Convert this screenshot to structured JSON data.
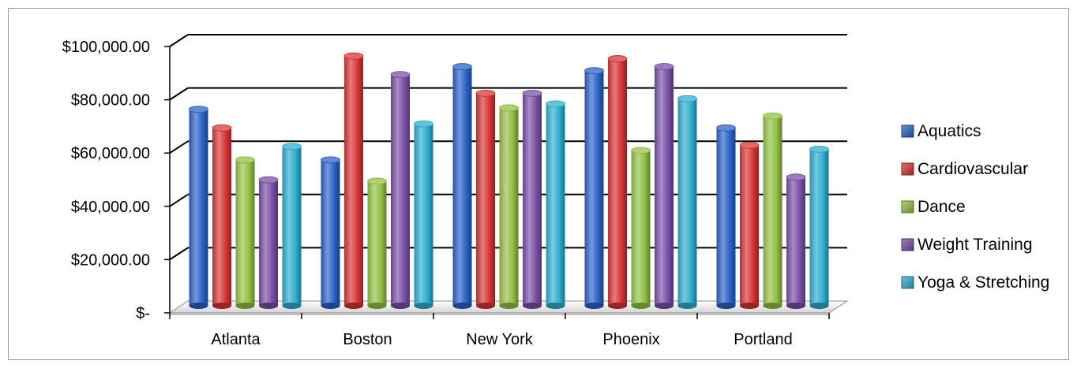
{
  "chart_data": {
    "type": "bar",
    "title": "",
    "xlabel": "",
    "ylabel": "",
    "categories": [
      "Atlanta",
      "Boston",
      "New York",
      "Phoenix",
      "Portland"
    ],
    "series": [
      {
        "name": "Aquatics",
        "values": [
          72000,
          53000,
          88000,
          86500,
          65000
        ],
        "color": "#2a63c7"
      },
      {
        "name": "Cardiovascular",
        "values": [
          65000,
          92000,
          78000,
          91000,
          58500
        ],
        "color": "#d93535"
      },
      {
        "name": "Dance",
        "values": [
          53000,
          45000,
          72500,
          56500,
          69500
        ],
        "color": "#93c245"
      },
      {
        "name": "Weight Training",
        "values": [
          45500,
          85000,
          78000,
          88000,
          46500
        ],
        "color": "#7b4fa8"
      },
      {
        "name": "Yoga & Stretching",
        "values": [
          58000,
          66500,
          74000,
          76000,
          57000
        ],
        "color": "#2eaed0"
      }
    ],
    "ylim": [
      0,
      100000
    ],
    "y_ticks": [
      0,
      20000,
      40000,
      60000,
      80000,
      100000
    ],
    "y_tick_labels": [
      "$-",
      "$20,000.00",
      "$40,000.00",
      "$60,000.00",
      "$80,000.00",
      "$100,000.00"
    ],
    "grid": true,
    "legend_position": "right",
    "style": "3d-cylinder"
  }
}
